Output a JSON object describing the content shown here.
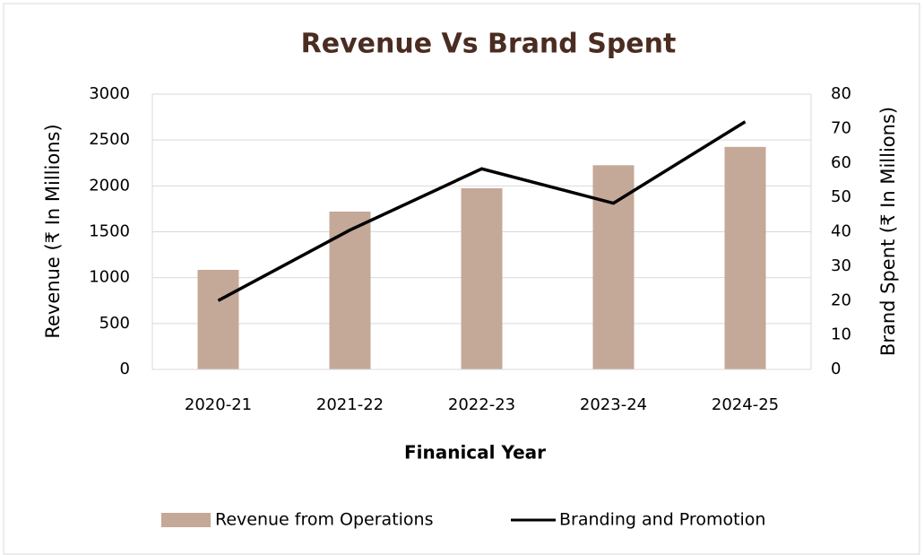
{
  "chart_data": {
    "type": "bar",
    "title": "Revenue Vs  Brand Spent",
    "x_label": "Finanical Year",
    "y_label": "Revenue (₹ In Millions)",
    "y2_label": "Brand Spent (₹ In Millions)",
    "categories": [
      "2020-21",
      "2021-22",
      "2022-23",
      "2023-24",
      "2024-25"
    ],
    "series": [
      {
        "name": "Revenue from Operations",
        "color": "#c4a898",
        "type": "bar",
        "values": [
          1085,
          1720,
          1975,
          2225,
          2425
        ]
      },
      {
        "name": "Branding and Promotion",
        "color": "#000000",
        "type": "line",
        "axis": "y2",
        "values": [
          20,
          40.5,
          58.3,
          48.3,
          72
        ]
      }
    ],
    "ylim": [
      0,
      3000
    ],
    "yticks": [
      0,
      500,
      1000,
      1500,
      2000,
      2500,
      3000
    ],
    "y2lim": [
      0,
      80
    ],
    "y2ticks": [
      0,
      10,
      20,
      30,
      40,
      50,
      60,
      70,
      80
    ],
    "grid": true,
    "legend": "bottom"
  }
}
